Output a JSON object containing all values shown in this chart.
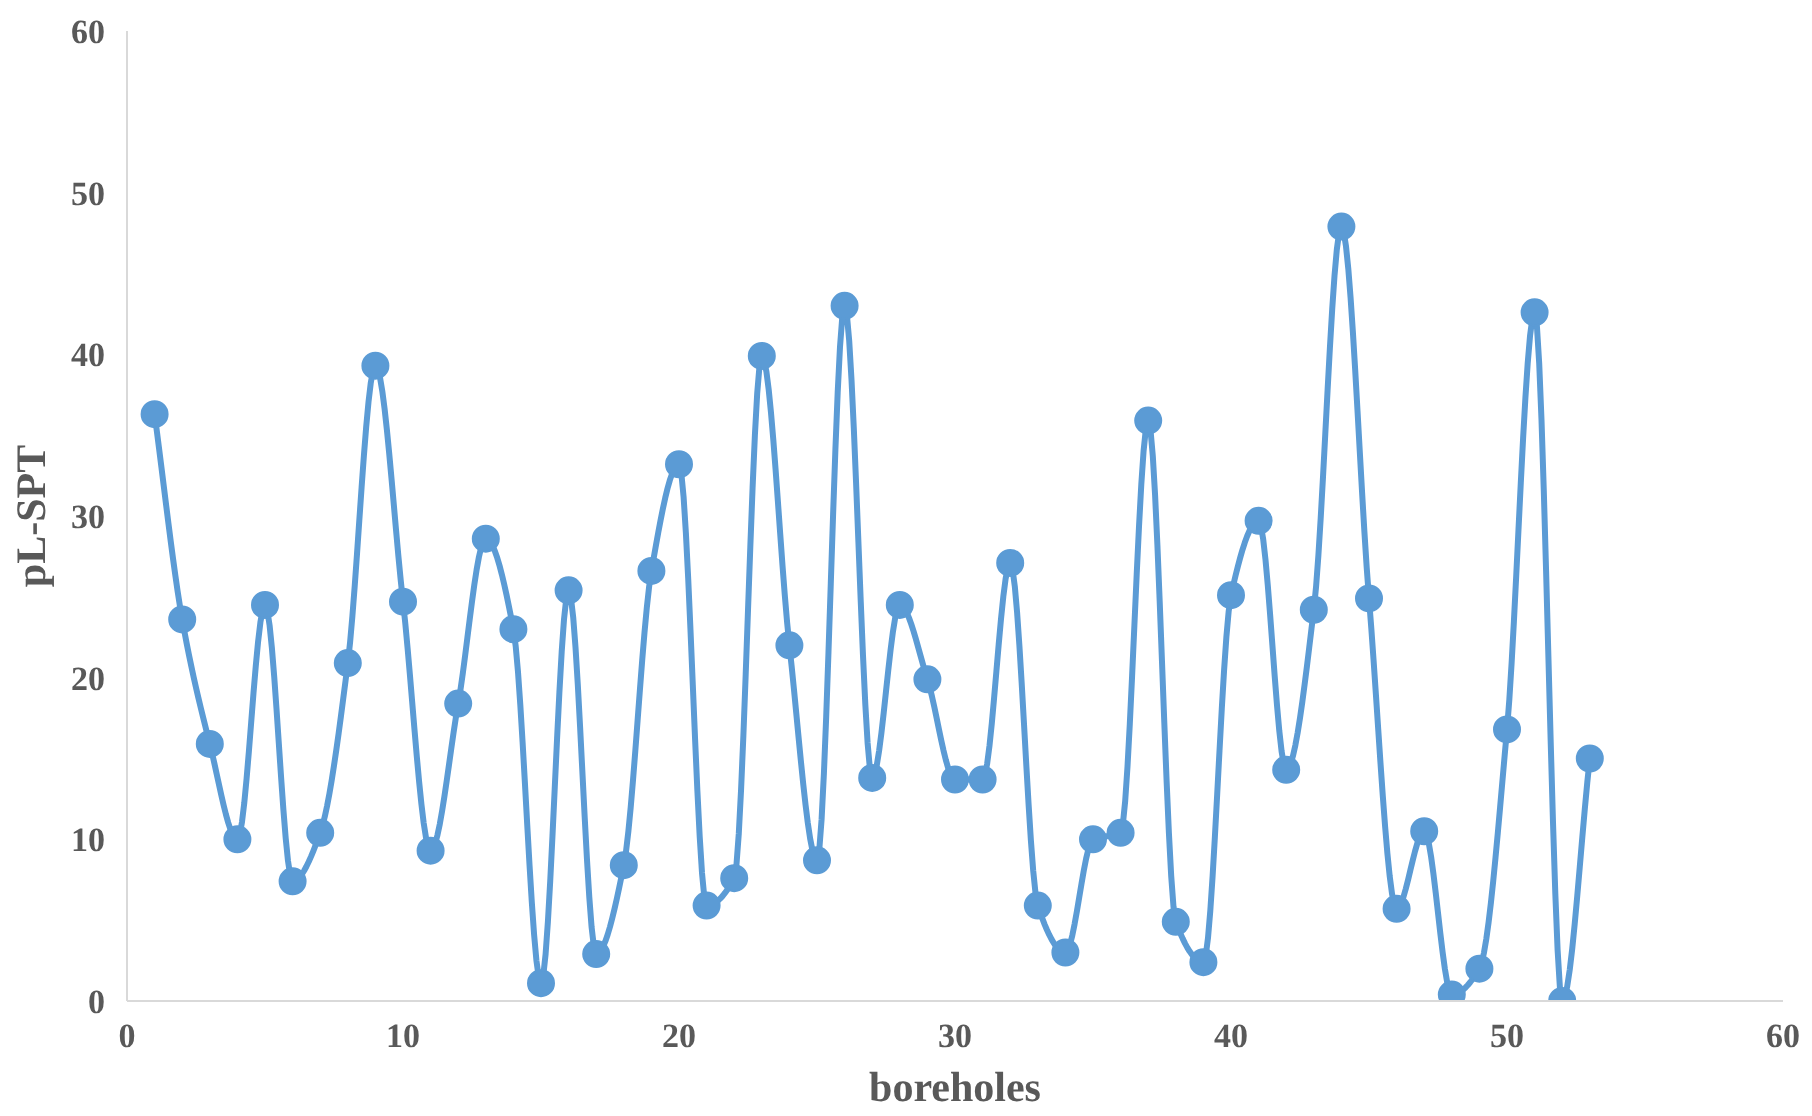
{
  "chart_data": {
    "type": "line",
    "xlabel": "boreholes",
    "ylabel": "pL-SPT",
    "x": [
      1,
      2,
      3,
      4,
      5,
      6,
      7,
      8,
      9,
      10,
      11,
      12,
      13,
      14,
      15,
      16,
      17,
      18,
      19,
      20,
      21,
      22,
      23,
      24,
      25,
      26,
      27,
      28,
      29,
      30,
      31,
      32,
      33,
      34,
      35,
      36,
      37,
      38,
      39,
      40,
      41,
      42,
      43,
      44,
      45,
      46,
      47,
      48,
      49,
      50,
      51,
      52,
      53
    ],
    "series": [
      {
        "color": "#5b9bd5",
        "values": [
          36.3,
          23.6,
          15.9,
          10.0,
          24.5,
          7.4,
          10.4,
          20.9,
          39.3,
          24.7,
          9.3,
          18.4,
          28.6,
          23.0,
          1.1,
          25.4,
          2.9,
          8.4,
          26.6,
          33.2,
          5.9,
          7.6,
          39.9,
          22.0,
          8.7,
          43.0,
          13.8,
          24.5,
          19.9,
          13.7,
          13.7,
          27.1,
          5.9,
          3.0,
          10.0,
          10.4,
          35.9,
          4.9,
          2.4,
          25.1,
          29.7,
          14.3,
          24.2,
          47.9,
          24.9,
          5.7,
          10.5,
          0.4,
          2.0,
          16.8,
          42.6,
          0.0,
          15.0
        ]
      }
    ],
    "xlim": [
      0,
      60
    ],
    "xticks": [
      0,
      10,
      20,
      30,
      40,
      50,
      60
    ],
    "ylim": [
      0,
      60
    ],
    "yticks": [
      0,
      10,
      20,
      30,
      40,
      50,
      60
    ],
    "grid": false,
    "marker": "circle",
    "line_style": "solid"
  }
}
